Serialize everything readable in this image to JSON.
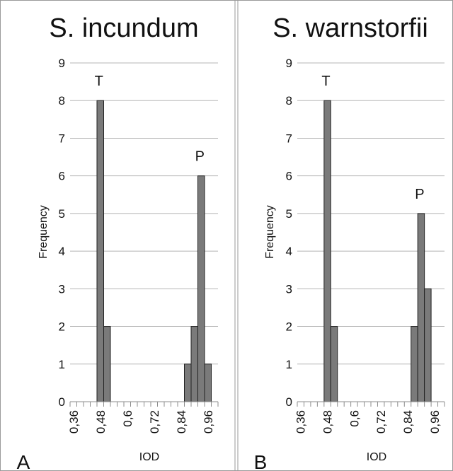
{
  "chart_data": [
    {
      "type": "bar",
      "panel_label": "A",
      "title": "S. incundum",
      "xlabel": "IOD",
      "ylabel": "Frequency",
      "ylim": [
        0,
        9
      ],
      "yticks": [
        "0",
        "1",
        "2",
        "3",
        "4",
        "5",
        "6",
        "7",
        "8",
        "9"
      ],
      "xticks": [
        "0,36",
        "0,48",
        "0,6",
        "0,72",
        "0,84",
        "0,96"
      ],
      "categories": [
        "0,36",
        "0,39",
        "0,42",
        "0,45",
        "0,48",
        "0,51",
        "0,54",
        "0,57",
        "0,6",
        "0,63",
        "0,66",
        "0,69",
        "0,72",
        "0,75",
        "0,78",
        "0,81",
        "0,84",
        "0,87",
        "0,9",
        "0,93",
        "0,96",
        "0,99"
      ],
      "values": [
        0,
        0,
        0,
        0,
        8,
        2,
        0,
        0,
        0,
        0,
        0,
        0,
        0,
        0,
        0,
        0,
        0,
        1,
        2,
        6,
        1,
        0
      ],
      "annotations": [
        {
          "text": "T",
          "category": "0,48"
        },
        {
          "text": "P",
          "category": "0,93"
        }
      ],
      "grid": true
    },
    {
      "type": "bar",
      "panel_label": "B",
      "title": "S. warnstorfii",
      "xlabel": "IOD",
      "ylabel": "Frequency",
      "ylim": [
        0,
        9
      ],
      "yticks": [
        "0",
        "1",
        "2",
        "3",
        "4",
        "5",
        "6",
        "7",
        "8",
        "9"
      ],
      "xticks": [
        "0,36",
        "0,48",
        "0,6",
        "0,72",
        "0,84",
        "0,96"
      ],
      "categories": [
        "0,36",
        "0,39",
        "0,42",
        "0,45",
        "0,48",
        "0,51",
        "0,54",
        "0,57",
        "0,6",
        "0,63",
        "0,66",
        "0,69",
        "0,72",
        "0,75",
        "0,78",
        "0,81",
        "0,84",
        "0,87",
        "0,9",
        "0,93",
        "0,96",
        "0,99"
      ],
      "values": [
        0,
        0,
        0,
        0,
        8,
        2,
        0,
        0,
        0,
        0,
        0,
        0,
        0,
        0,
        0,
        0,
        0,
        2,
        5,
        3,
        0,
        0
      ],
      "annotations": [
        {
          "text": "T",
          "category": "0,48"
        },
        {
          "text": "P",
          "category": "0,9"
        }
      ],
      "grid": true
    }
  ]
}
